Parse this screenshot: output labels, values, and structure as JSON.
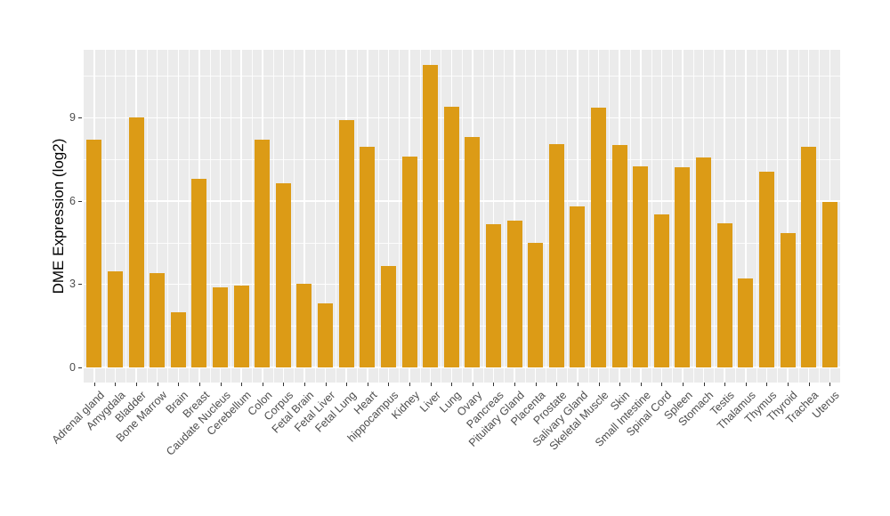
{
  "figure": {
    "background": "#FFFFFF"
  },
  "chart_data": {
    "type": "bar",
    "title": "",
    "xlabel": "",
    "ylabel": "DME Expression (log2)",
    "categories": [
      "Adrenal gland",
      "Amygdala",
      "Bladder",
      "Bone Marrow",
      "Brain",
      "Breast",
      "Caudate Nucleus",
      "Cerebellum",
      "Colon",
      "Corpus",
      "Fetal Brain",
      "Fetal Liver",
      "Fetal Lung",
      "Heart",
      "hippocampus",
      "Kidney",
      "Liver",
      "Lung",
      "Ovary",
      "Pancreas",
      "Pituitary Gland",
      "Placenta",
      "Prostate",
      "Salivary Gland",
      "Skeletal Muscle",
      "Skin",
      "Small Intestine",
      "Spinal Cord",
      "Spleen",
      "Stomach",
      "Testis",
      "Thalamus",
      "Thymus",
      "Thyroid",
      "Trachea",
      "Uterus"
    ],
    "values": [
      8.2,
      3.45,
      9.0,
      3.4,
      2.0,
      6.8,
      2.9,
      2.95,
      8.2,
      6.65,
      3.0,
      2.3,
      8.9,
      7.95,
      3.65,
      7.6,
      10.9,
      9.4,
      8.3,
      5.15,
      5.3,
      4.5,
      8.05,
      5.8,
      9.35,
      8.0,
      7.25,
      5.5,
      7.2,
      7.55,
      5.2,
      3.2,
      7.05,
      4.85,
      7.95,
      5.95
    ],
    "yticks": [
      0,
      3,
      6,
      9
    ],
    "yticks_minor": [
      1.5,
      4.5,
      7.5,
      10.5
    ],
    "ylim": [
      -0.55,
      11.45
    ],
    "grid": "on",
    "legend": "none",
    "bar_color": "#DC9B16",
    "panel_background": "#EBEBEB",
    "grid_color": "#FFFFFF",
    "axis_text_color": "#4D4D4D",
    "axis_title_color": "#000000",
    "tick_mark_color": "#333333"
  }
}
